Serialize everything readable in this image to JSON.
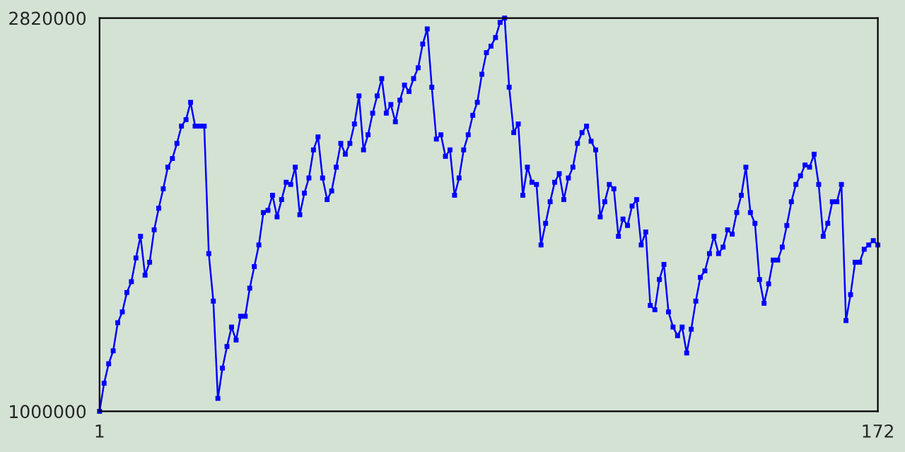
{
  "chart_data": {
    "type": "line",
    "x": [
      1,
      2,
      3,
      4,
      5,
      6,
      7,
      8,
      9,
      10,
      11,
      12,
      13,
      14,
      15,
      16,
      17,
      18,
      19,
      20,
      21,
      22,
      23,
      24,
      25,
      26,
      27,
      28,
      29,
      30,
      31,
      32,
      33,
      34,
      35,
      36,
      37,
      38,
      39,
      40,
      41,
      42,
      43,
      44,
      45,
      46,
      47,
      48,
      49,
      50,
      51,
      52,
      53,
      54,
      55,
      56,
      57,
      58,
      59,
      60,
      61,
      62,
      63,
      64,
      65,
      66,
      67,
      68,
      69,
      70,
      71,
      72,
      73,
      74,
      75,
      76,
      77,
      78,
      79,
      80,
      81,
      82,
      83,
      84,
      85,
      86,
      87,
      88,
      89,
      90,
      91,
      92,
      93,
      94,
      95,
      96,
      97,
      98,
      99,
      100,
      101,
      102,
      103,
      104,
      105,
      106,
      107,
      108,
      109,
      110,
      111,
      112,
      113,
      114,
      115,
      116,
      117,
      118,
      119,
      120,
      121,
      122,
      123,
      124,
      125,
      126,
      127,
      128,
      129,
      130,
      131,
      132,
      133,
      134,
      135,
      136,
      137,
      138,
      139,
      140,
      141,
      142,
      143,
      144,
      145,
      146,
      147,
      148,
      149,
      150,
      151,
      152,
      153,
      154,
      155,
      156,
      157,
      158,
      159,
      160,
      161,
      162,
      163,
      164,
      165,
      166,
      167,
      168,
      169,
      170,
      171,
      172
    ],
    "series": [
      {
        "color": "#0000ff",
        "values": [
          1000000,
          1130000,
          1220000,
          1280000,
          1410000,
          1460000,
          1550000,
          1600000,
          1710000,
          1810000,
          1630000,
          1690000,
          1840000,
          1940000,
          2030000,
          2130000,
          2170000,
          2240000,
          2320000,
          2350000,
          2430000,
          2320000,
          2320000,
          2320000,
          1730000,
          1510000,
          1060000,
          1200000,
          1300000,
          1390000,
          1330000,
          1440000,
          1440000,
          1570000,
          1670000,
          1770000,
          1920000,
          1930000,
          2000000,
          1900000,
          1980000,
          2060000,
          2050000,
          2130000,
          1910000,
          2010000,
          2080000,
          2210000,
          2270000,
          2080000,
          1980000,
          2020000,
          2130000,
          2240000,
          2190000,
          2240000,
          2330000,
          2460000,
          2210000,
          2280000,
          2380000,
          2460000,
          2540000,
          2380000,
          2420000,
          2340000,
          2440000,
          2510000,
          2480000,
          2540000,
          2590000,
          2700000,
          2770000,
          2500000,
          2260000,
          2280000,
          2180000,
          2210000,
          2000000,
          2080000,
          2210000,
          2280000,
          2370000,
          2430000,
          2560000,
          2660000,
          2690000,
          2730000,
          2800000,
          2820000,
          2500000,
          2290000,
          2330000,
          2000000,
          2130000,
          2060000,
          2050000,
          1770000,
          1870000,
          1970000,
          2060000,
          2100000,
          1980000,
          2080000,
          2130000,
          2240000,
          2290000,
          2320000,
          2250000,
          2210000,
          1900000,
          1970000,
          2050000,
          2030000,
          1810000,
          1890000,
          1860000,
          1950000,
          1980000,
          1770000,
          1830000,
          1490000,
          1470000,
          1610000,
          1680000,
          1460000,
          1390000,
          1350000,
          1390000,
          1270000,
          1380000,
          1510000,
          1620000,
          1650000,
          1730000,
          1810000,
          1730000,
          1760000,
          1840000,
          1820000,
          1920000,
          2000000,
          2130000,
          1920000,
          1870000,
          1610000,
          1500000,
          1590000,
          1700000,
          1700000,
          1760000,
          1860000,
          1970000,
          2050000,
          2090000,
          2140000,
          2130000,
          2190000,
          2050000,
          1810000,
          1870000,
          1970000,
          1970000,
          2050000,
          1420000,
          1540000,
          1690000,
          1690000,
          1750000,
          1770000,
          1790000,
          1770000
        ]
      }
    ],
    "xlim": [
      1,
      172
    ],
    "xticks": [
      1,
      172
    ],
    "ylim": [
      1000000,
      2820000
    ],
    "yticks": [
      1000000,
      2820000
    ],
    "marker": "square",
    "line_style": "solid",
    "grid": false,
    "legend": false
  }
}
